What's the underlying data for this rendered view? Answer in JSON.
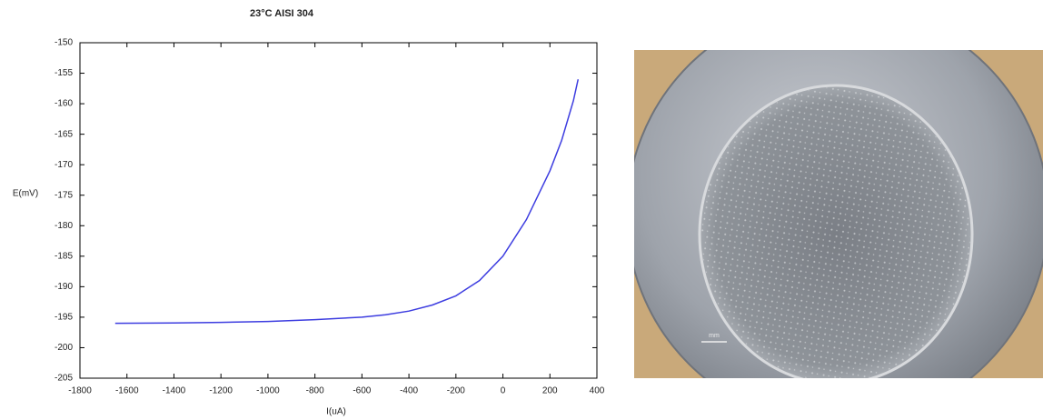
{
  "chart_data": {
    "type": "line",
    "title": "23°C AISI 304",
    "x_label": "I(uA)",
    "y_label": "E(mV)",
    "x": [
      -1650,
      -1400,
      -1200,
      -1000,
      -800,
      -600,
      -500,
      -400,
      -300,
      -200,
      -100,
      0,
      100,
      200,
      250,
      300,
      320
    ],
    "series": [
      {
        "name": "E",
        "color": "#3d3de0",
        "values": [
          -196.0,
          -195.95,
          -195.85,
          -195.7,
          -195.4,
          -195.0,
          -194.6,
          -194.0,
          -193.0,
          -191.5,
          -189.0,
          -185.0,
          -179.0,
          -171.0,
          -166.0,
          -159.5,
          -156.0
        ]
      }
    ],
    "xlim": [
      -1800,
      400
    ],
    "xticks": [
      -1800,
      -1600,
      -1400,
      -1200,
      -1000,
      -800,
      -600,
      -400,
      -200,
      0,
      200,
      400
    ],
    "ylim": [
      -205,
      -150
    ],
    "yticks": [
      -150,
      -155,
      -160,
      -165,
      -170,
      -175,
      -180,
      -185,
      -190,
      -195,
      -200,
      -205
    ],
    "grid": false
  },
  "photo": {
    "scale_label": "mm"
  }
}
